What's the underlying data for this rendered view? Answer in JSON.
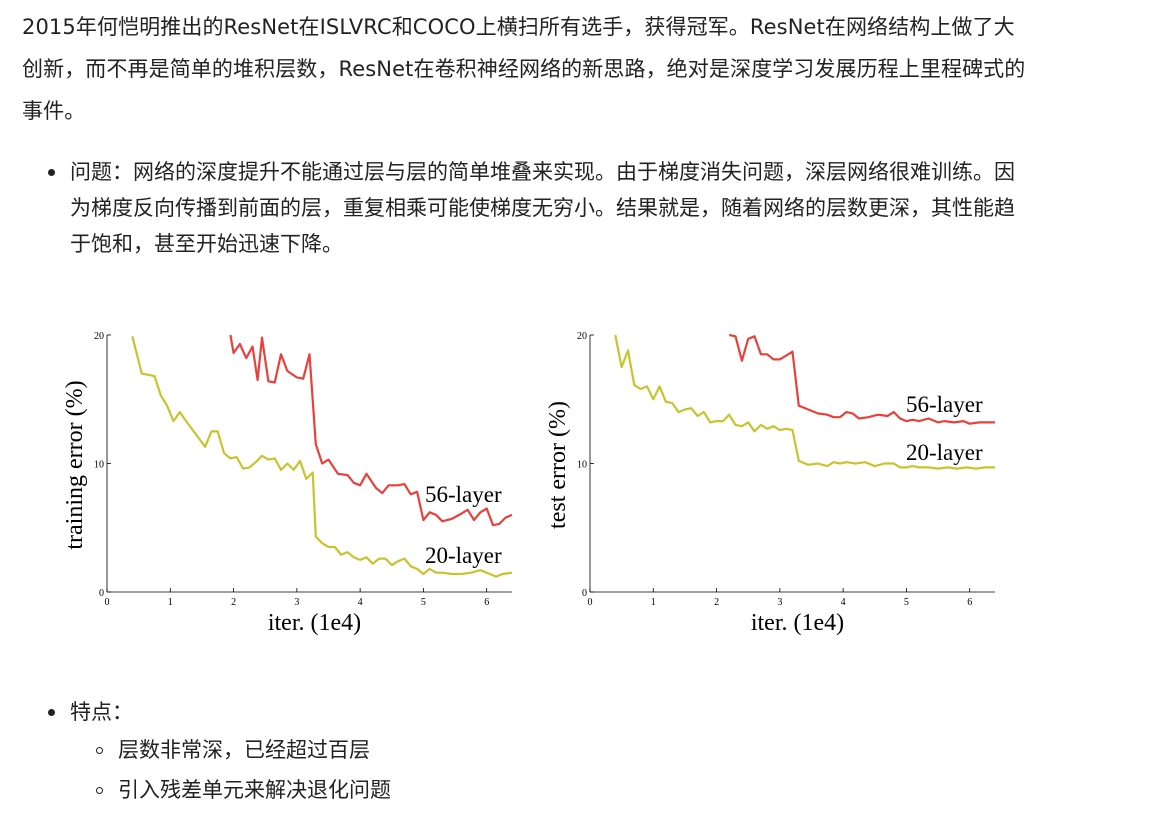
{
  "intro": {
    "lines": [
      "2015年何恺明推出的ResNet在ISLVRC和COCO上横扫所有选手，获得冠军。ResNet在网络结构上做了大",
      "创新，而不再是简单的堆积层数，ResNet在卷积神经网络的新思路，绝对是深度学习发展历程上里程碑式的",
      "事件。"
    ]
  },
  "problem": {
    "lines": [
      "问题：网络的深度提升不能通过层与层的简单堆叠来实现。由于梯度消失问题，深层网络很难训练。因",
      "为梯度反向传播到前面的层，重复相乘可能使梯度无穷小。结果就是，随着网络的层数更深，其性能趋",
      "于饱和，甚至开始迅速下降。"
    ]
  },
  "features": {
    "title": "特点：",
    "items": [
      "层数非常深，已经超过百层",
      "引入残差单元来解决退化问题"
    ]
  },
  "chart_data": [
    {
      "type": "line",
      "ylabel": "training error (%)",
      "xlabel": "iter. (1e4)",
      "xticks": [
        "0",
        "1",
        "2",
        "3",
        "4",
        "5",
        "6"
      ],
      "yticks": [
        "0",
        "10",
        "20"
      ],
      "xlim": [
        0,
        6.4
      ],
      "ylim": [
        0,
        20
      ],
      "series": [
        {
          "name": "56-layer",
          "color": "#e8403a",
          "points": [
            [
              1.95,
              20
            ],
            [
              2.0,
              18.6
            ],
            [
              2.1,
              19.3
            ],
            [
              2.2,
              18.2
            ],
            [
              2.3,
              19.1
            ],
            [
              2.38,
              16.5
            ],
            [
              2.45,
              19.8
            ],
            [
              2.55,
              16.4
            ],
            [
              2.65,
              16.3
            ],
            [
              2.75,
              18.5
            ],
            [
              2.85,
              17.2
            ],
            [
              3.0,
              16.7
            ],
            [
              3.1,
              16.6
            ],
            [
              3.2,
              18.5
            ],
            [
              3.3,
              11.5
            ],
            [
              3.4,
              10.0
            ],
            [
              3.5,
              10.3
            ],
            [
              3.65,
              9.2
            ],
            [
              3.8,
              9.1
            ],
            [
              3.9,
              8.5
            ],
            [
              4.0,
              8.3
            ],
            [
              4.1,
              9.2
            ],
            [
              4.25,
              8.1
            ],
            [
              4.35,
              7.7
            ],
            [
              4.45,
              8.3
            ],
            [
              4.6,
              8.3
            ],
            [
              4.7,
              8.4
            ],
            [
              4.8,
              7.6
            ],
            [
              4.9,
              7.8
            ],
            [
              5.0,
              5.6
            ],
            [
              5.1,
              6.2
            ],
            [
              5.2,
              6.0
            ],
            [
              5.3,
              5.5
            ],
            [
              5.45,
              5.7
            ],
            [
              5.6,
              6.1
            ],
            [
              5.7,
              6.4
            ],
            [
              5.8,
              5.6
            ],
            [
              5.9,
              6.2
            ],
            [
              6.0,
              6.5
            ],
            [
              6.1,
              5.2
            ],
            [
              6.2,
              5.3
            ],
            [
              6.3,
              5.8
            ],
            [
              6.4,
              6.0
            ]
          ]
        },
        {
          "name": "20-layer",
          "color": "#c7c42e",
          "points": [
            [
              0.4,
              19.9
            ],
            [
              0.55,
              17.0
            ],
            [
              0.75,
              16.8
            ],
            [
              0.85,
              15.3
            ],
            [
              0.95,
              14.5
            ],
            [
              1.05,
              13.3
            ],
            [
              1.15,
              14.0
            ],
            [
              1.25,
              13.3
            ],
            [
              1.4,
              12.3
            ],
            [
              1.55,
              11.3
            ],
            [
              1.65,
              12.5
            ],
            [
              1.75,
              12.5
            ],
            [
              1.85,
              10.8
            ],
            [
              1.95,
              10.4
            ],
            [
              2.05,
              10.5
            ],
            [
              2.15,
              9.6
            ],
            [
              2.25,
              9.7
            ],
            [
              2.35,
              10.1
            ],
            [
              2.45,
              10.6
            ],
            [
              2.55,
              10.3
            ],
            [
              2.65,
              10.4
            ],
            [
              2.75,
              9.5
            ],
            [
              2.85,
              10.0
            ],
            [
              2.95,
              9.5
            ],
            [
              3.05,
              10.2
            ],
            [
              3.15,
              8.8
            ],
            [
              3.25,
              9.3
            ],
            [
              3.3,
              4.3
            ],
            [
              3.4,
              3.8
            ],
            [
              3.5,
              3.5
            ],
            [
              3.6,
              3.5
            ],
            [
              3.7,
              2.9
            ],
            [
              3.8,
              3.1
            ],
            [
              3.9,
              2.7
            ],
            [
              4.0,
              2.5
            ],
            [
              4.1,
              2.7
            ],
            [
              4.2,
              2.2
            ],
            [
              4.3,
              2.6
            ],
            [
              4.4,
              2.6
            ],
            [
              4.5,
              2.1
            ],
            [
              4.6,
              2.4
            ],
            [
              4.7,
              2.6
            ],
            [
              4.8,
              2.0
            ],
            [
              4.9,
              1.8
            ],
            [
              5.0,
              1.4
            ],
            [
              5.1,
              1.8
            ],
            [
              5.2,
              1.5
            ],
            [
              5.3,
              1.5
            ],
            [
              5.45,
              1.4
            ],
            [
              5.6,
              1.4
            ],
            [
              5.75,
              1.5
            ],
            [
              5.9,
              1.7
            ],
            [
              6.05,
              1.4
            ],
            [
              6.15,
              1.2
            ],
            [
              6.25,
              1.4
            ],
            [
              6.4,
              1.5
            ]
          ]
        }
      ]
    },
    {
      "type": "line",
      "ylabel": "test error (%)",
      "xlabel": "iter. (1e4)",
      "xticks": [
        "0",
        "1",
        "2",
        "3",
        "4",
        "5",
        "6"
      ],
      "yticks": [
        "0",
        "10",
        "20"
      ],
      "xlim": [
        0,
        6.4
      ],
      "ylim": [
        0,
        20
      ],
      "series": [
        {
          "name": "56-layer",
          "color": "#e8403a",
          "points": [
            [
              2.2,
              20
            ],
            [
              2.3,
              19.9
            ],
            [
              2.4,
              18.0
            ],
            [
              2.5,
              19.7
            ],
            [
              2.6,
              19.9
            ],
            [
              2.7,
              18.5
            ],
            [
              2.8,
              18.5
            ],
            [
              2.9,
              18.1
            ],
            [
              3.0,
              18.1
            ],
            [
              3.1,
              18.4
            ],
            [
              3.2,
              18.7
            ],
            [
              3.3,
              14.5
            ],
            [
              3.45,
              14.2
            ],
            [
              3.6,
              13.9
            ],
            [
              3.75,
              13.8
            ],
            [
              3.85,
              13.6
            ],
            [
              3.95,
              13.6
            ],
            [
              4.05,
              14.0
            ],
            [
              4.15,
              13.9
            ],
            [
              4.25,
              13.5
            ],
            [
              4.4,
              13.6
            ],
            [
              4.55,
              13.8
            ],
            [
              4.7,
              13.7
            ],
            [
              4.8,
              14.0
            ],
            [
              4.9,
              13.5
            ],
            [
              5.0,
              13.3
            ],
            [
              5.1,
              13.4
            ],
            [
              5.2,
              13.3
            ],
            [
              5.35,
              13.5
            ],
            [
              5.5,
              13.2
            ],
            [
              5.6,
              13.3
            ],
            [
              5.75,
              13.2
            ],
            [
              5.9,
              13.3
            ],
            [
              6.0,
              13.1
            ],
            [
              6.15,
              13.2
            ],
            [
              6.3,
              13.2
            ],
            [
              6.4,
              13.2
            ]
          ]
        },
        {
          "name": "20-layer",
          "color": "#c7c42e",
          "points": [
            [
              0.4,
              20
            ],
            [
              0.5,
              17.5
            ],
            [
              0.6,
              18.8
            ],
            [
              0.7,
              16.1
            ],
            [
              0.8,
              15.8
            ],
            [
              0.9,
              16.0
            ],
            [
              1.0,
              15.0
            ],
            [
              1.1,
              16.0
            ],
            [
              1.2,
              14.8
            ],
            [
              1.3,
              14.7
            ],
            [
              1.4,
              14.0
            ],
            [
              1.5,
              14.2
            ],
            [
              1.6,
              14.3
            ],
            [
              1.7,
              13.7
            ],
            [
              1.8,
              14.0
            ],
            [
              1.9,
              13.2
            ],
            [
              2.0,
              13.3
            ],
            [
              2.1,
              13.3
            ],
            [
              2.2,
              13.8
            ],
            [
              2.3,
              13.0
            ],
            [
              2.4,
              12.9
            ],
            [
              2.5,
              13.2
            ],
            [
              2.6,
              12.5
            ],
            [
              2.7,
              13.0
            ],
            [
              2.8,
              12.7
            ],
            [
              2.9,
              12.9
            ],
            [
              3.0,
              12.6
            ],
            [
              3.1,
              12.7
            ],
            [
              3.2,
              12.6
            ],
            [
              3.3,
              10.2
            ],
            [
              3.45,
              9.9
            ],
            [
              3.6,
              10.0
            ],
            [
              3.75,
              9.8
            ],
            [
              3.85,
              10.1
            ],
            [
              3.95,
              10.0
            ],
            [
              4.05,
              10.1
            ],
            [
              4.2,
              10.0
            ],
            [
              4.35,
              10.1
            ],
            [
              4.5,
              9.8
            ],
            [
              4.65,
              10.0
            ],
            [
              4.8,
              10.0
            ],
            [
              4.9,
              9.7
            ],
            [
              5.0,
              9.7
            ],
            [
              5.1,
              9.8
            ],
            [
              5.2,
              9.7
            ],
            [
              5.35,
              9.7
            ],
            [
              5.5,
              9.6
            ],
            [
              5.65,
              9.7
            ],
            [
              5.8,
              9.6
            ],
            [
              5.95,
              9.7
            ],
            [
              6.1,
              9.6
            ],
            [
              6.25,
              9.7
            ],
            [
              6.4,
              9.7
            ]
          ]
        }
      ]
    }
  ]
}
